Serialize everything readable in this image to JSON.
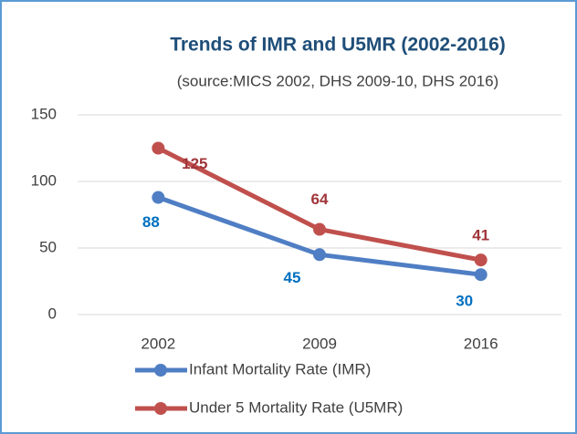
{
  "chart_data": {
    "type": "line",
    "title": "Trends of IMR and U5MR (2002-2016)",
    "subtitle": "(source:MICS 2002, DHS 2009-10, DHS 2016)",
    "categories": [
      "2002",
      "2009",
      "2016"
    ],
    "series": [
      {
        "name": "Infant Mortality Rate (IMR)",
        "color": "#4f7ec4",
        "label_color": "#0070c0",
        "values": [
          88,
          45,
          30
        ]
      },
      {
        "name": "Under 5 Mortality Rate (U5MR)",
        "color": "#c0504d",
        "label_color": "#a0353a",
        "values": [
          125,
          64,
          41
        ]
      }
    ],
    "ylim": [
      0,
      150
    ],
    "yticks": [
      0,
      50,
      100,
      150
    ],
    "grid": true
  }
}
